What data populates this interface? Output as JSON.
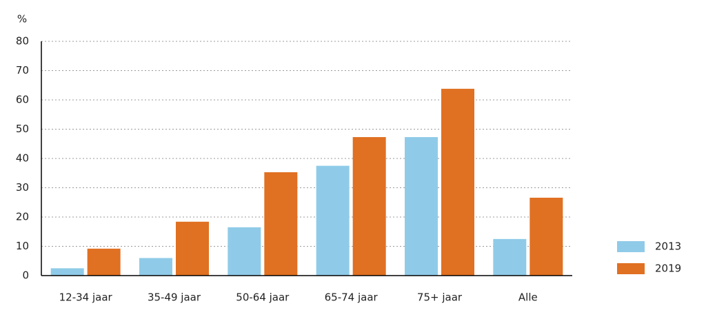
{
  "chart_data": {
    "type": "bar",
    "y_label": "%",
    "categories": [
      "12-34 jaar",
      "35-49 jaar",
      "50-64 jaar",
      "65-74 jaar",
      "75+ jaar",
      "Alle"
    ],
    "series": [
      {
        "name": "2013",
        "color": "#8fcbe8",
        "values": [
          2.5,
          6,
          16.5,
          37.5,
          47.3,
          12.5
        ]
      },
      {
        "name": "2019",
        "color": "#e07022",
        "values": [
          9.2,
          18.4,
          35.3,
          47.3,
          63.8,
          26.6
        ]
      }
    ],
    "ylim": [
      0,
      80
    ],
    "yticks": [
      0,
      10,
      20,
      30,
      40,
      50,
      60,
      70,
      80
    ],
    "grid": true,
    "legend": "right"
  }
}
